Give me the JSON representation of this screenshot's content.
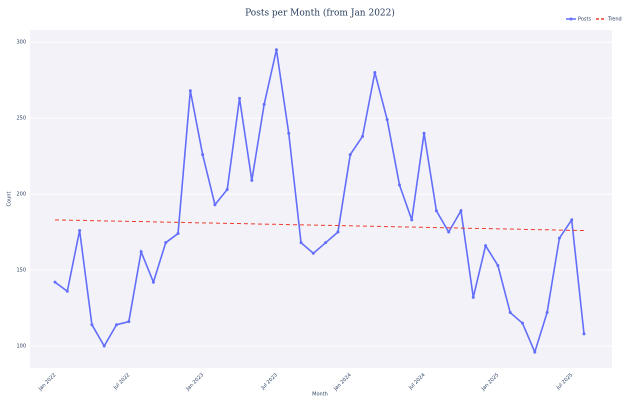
{
  "chart_data": {
    "type": "line",
    "title": "Posts per Month (from Jan 2022)",
    "x_label": "Month",
    "y_label": "Count",
    "x": [
      "Jan 2022",
      "Feb 2022",
      "Mar 2022",
      "Apr 2022",
      "May 2022",
      "Jun 2022",
      "Jul 2022",
      "Aug 2022",
      "Sep 2022",
      "Oct 2022",
      "Nov 2022",
      "Dec 2022",
      "Jan 2023",
      "Feb 2023",
      "Mar 2023",
      "Apr 2023",
      "May 2023",
      "Jun 2023",
      "Jul 2023",
      "Aug 2023",
      "Sep 2023",
      "Oct 2023",
      "Nov 2023",
      "Dec 2023",
      "Jan 2024",
      "Feb 2024",
      "Mar 2024",
      "Apr 2024",
      "May 2024",
      "Jun 2024",
      "Jul 2024",
      "Aug 2024",
      "Sep 2024",
      "Oct 2024",
      "Nov 2024",
      "Dec 2024",
      "Jan 2025",
      "Feb 2025",
      "Mar 2025",
      "Apr 2025",
      "May 2025",
      "Jun 2025",
      "Jul 2025",
      "Aug 2025"
    ],
    "xticks": [
      "Jan 2022",
      "Jul 2022",
      "Jan 2023",
      "Jul 2023",
      "Jan 2024",
      "Jul 2024",
      "Jan 2025",
      "Jul 2025"
    ],
    "series": [
      {
        "name": "Posts",
        "color": "#636efa",
        "dash": false,
        "markers": true,
        "values": [
          142,
          136,
          176,
          114,
          100,
          114,
          116,
          162,
          142,
          168,
          174,
          268,
          226,
          193,
          203,
          263,
          209,
          259,
          295,
          240,
          168,
          161,
          168,
          175,
          226,
          238,
          280,
          249,
          206,
          183,
          240,
          189,
          175,
          189,
          132,
          166,
          153,
          122,
          115,
          96,
          122,
          171,
          183,
          108
        ]
      },
      {
        "name": "Trend",
        "color": "#ef3b2c",
        "dash": true,
        "markers": false,
        "values": [
          183.0,
          182.8,
          182.7,
          182.5,
          182.3,
          182.2,
          182.0,
          181.9,
          181.7,
          181.5,
          181.4,
          181.2,
          181.0,
          180.9,
          180.7,
          180.6,
          180.4,
          180.2,
          180.1,
          179.9,
          179.7,
          179.6,
          179.4,
          179.3,
          179.1,
          178.9,
          178.8,
          178.6,
          178.4,
          178.3,
          178.1,
          177.9,
          177.8,
          177.6,
          177.4,
          177.3,
          177.1,
          177.0,
          176.8,
          176.6,
          176.5,
          176.3,
          176.1,
          176.0
        ]
      }
    ],
    "ylim": [
      85.5,
      308
    ],
    "yticks": [
      100,
      150,
      200,
      250,
      300
    ],
    "grid": true,
    "legend": "top-right"
  }
}
